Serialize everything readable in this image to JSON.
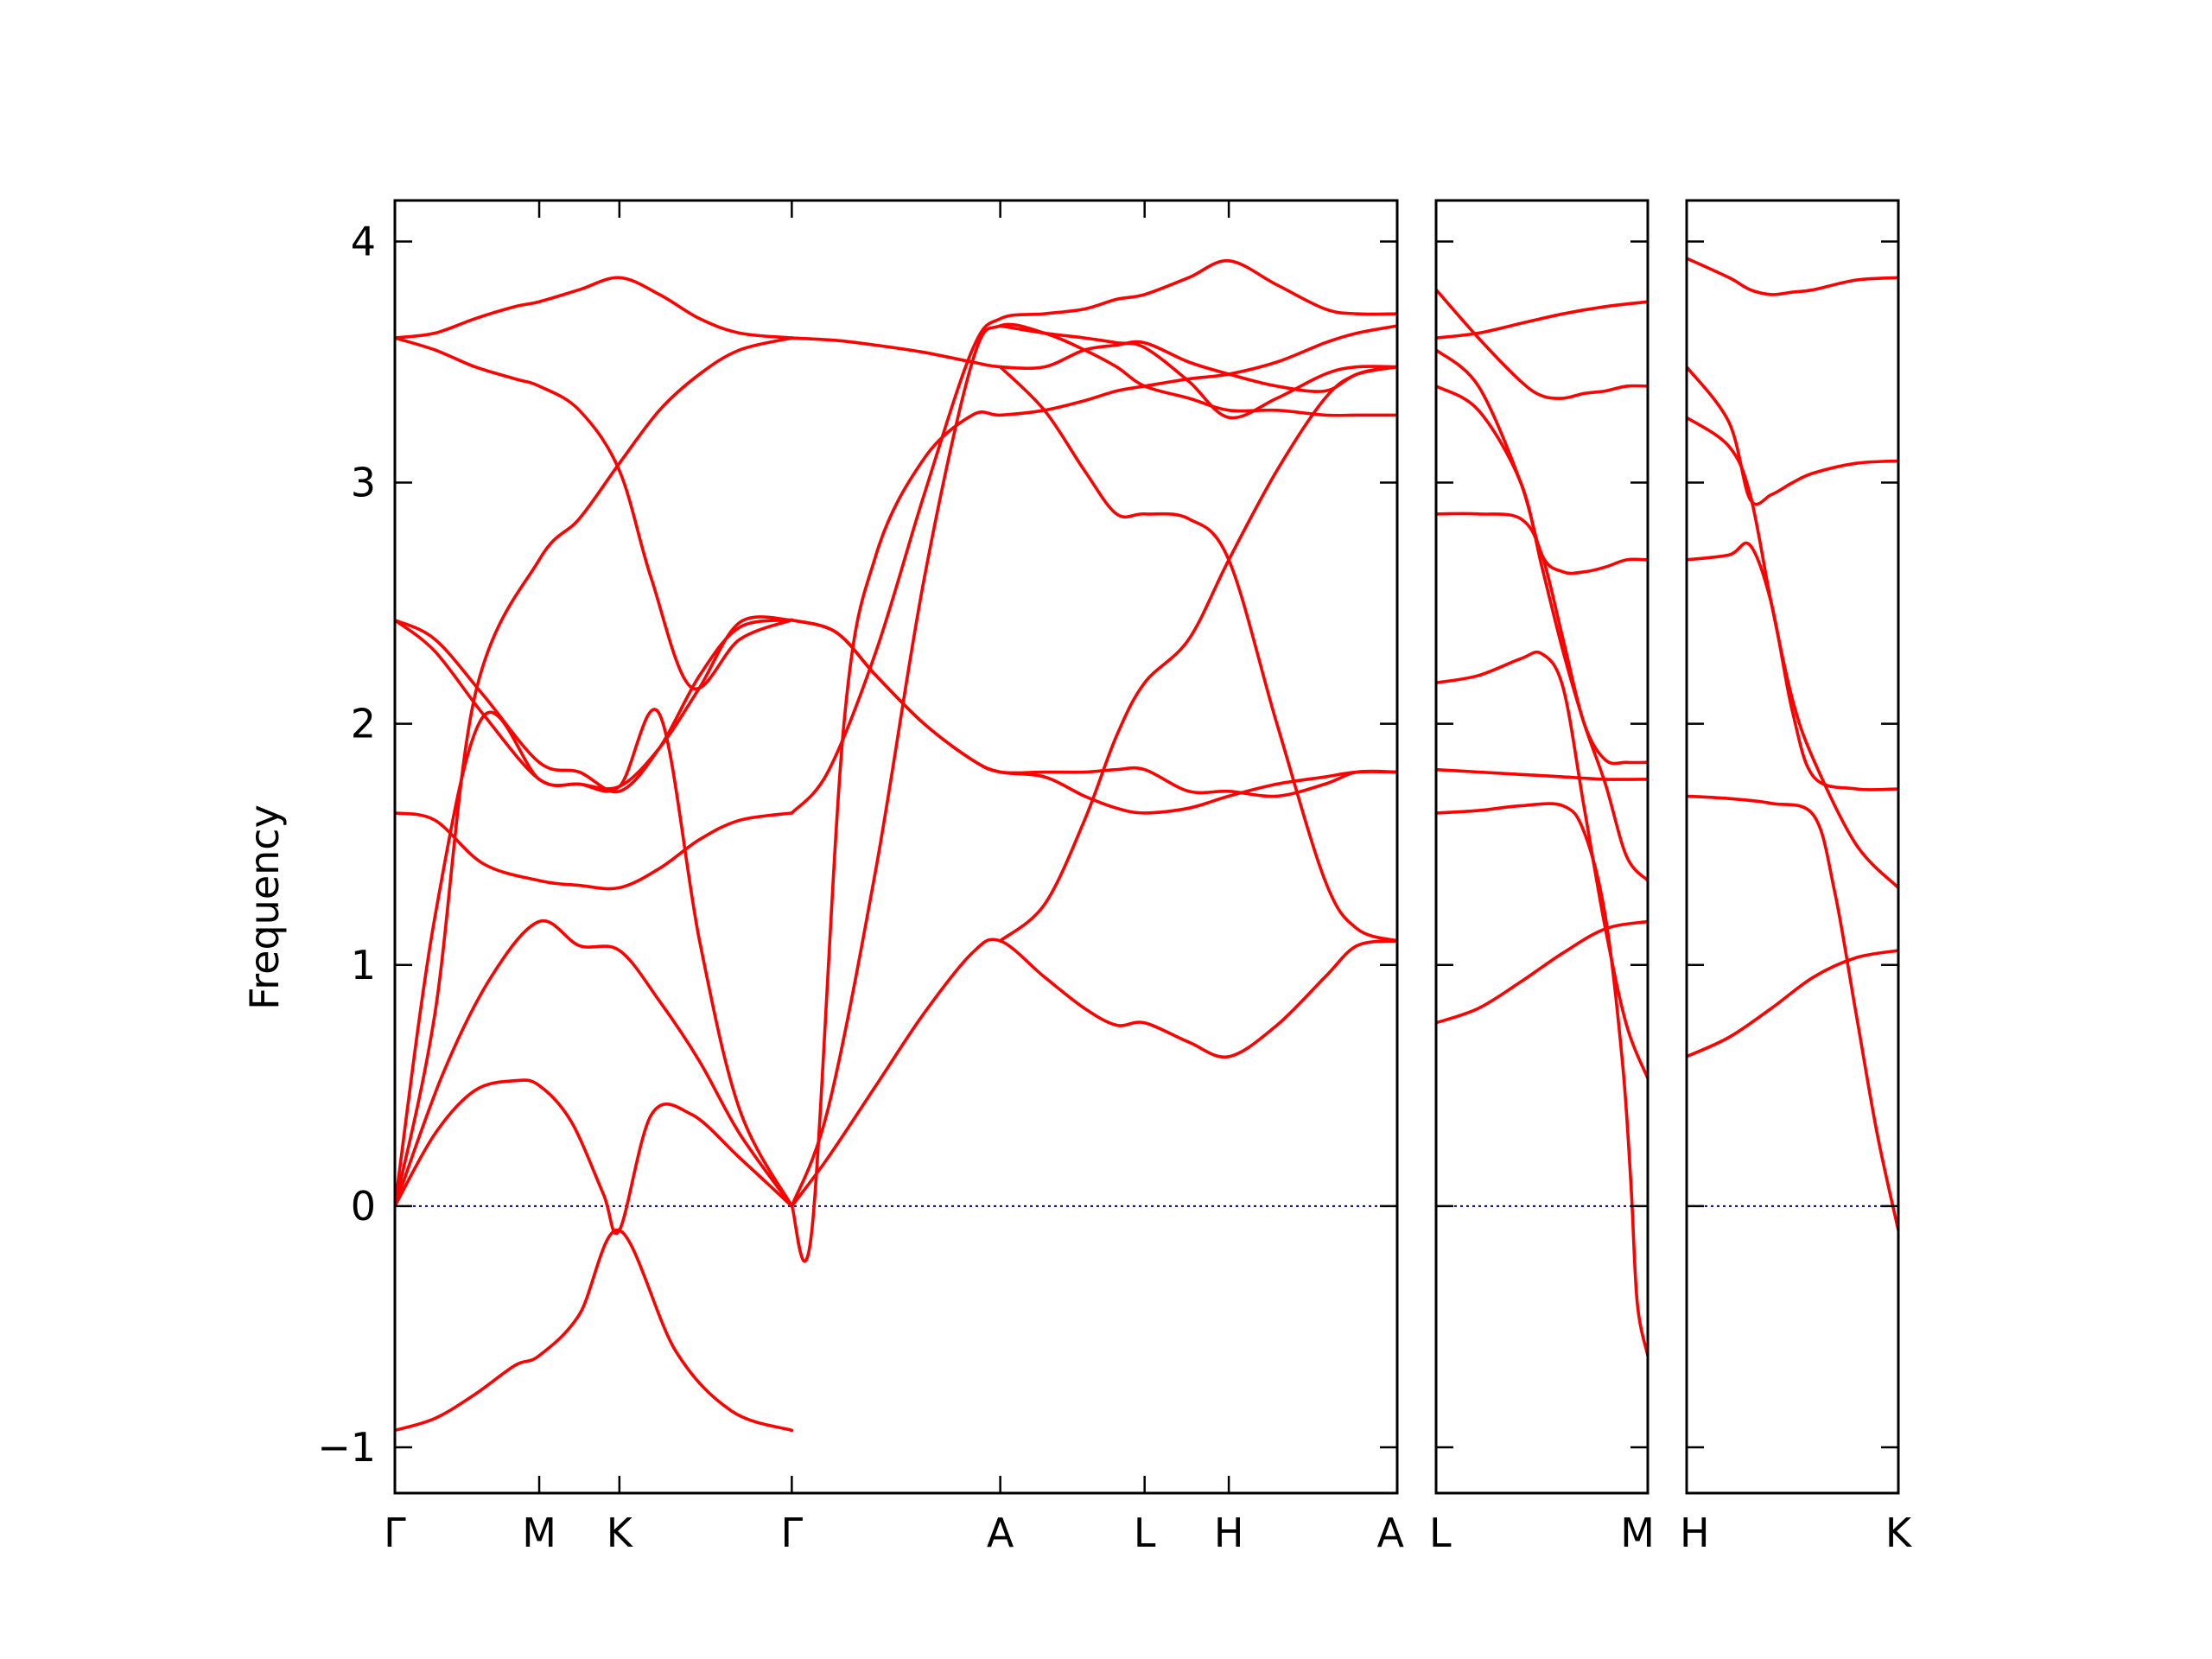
{
  "chart_data": {
    "type": "line",
    "ylabel": "Frequency",
    "ylim": [
      -1.19,
      4.17
    ],
    "yticks": [
      -1,
      0,
      1,
      2,
      3,
      4
    ],
    "ytick_labels": [
      "−1",
      "0",
      "1",
      "2",
      "3",
      "4"
    ],
    "grid": false,
    "legend": "none",
    "colors": {
      "bands": "#ff0000",
      "zero_line": "#000080"
    },
    "panels": [
      {
        "name": "panel-1",
        "x_range": [
          0,
          12.5
        ],
        "ticks": [
          {
            "x": 0,
            "label": "Γ"
          },
          {
            "x": 1.8,
            "label": "M"
          },
          {
            "x": 2.8,
            "label": "K"
          },
          {
            "x": 4.95,
            "label": "Γ"
          },
          {
            "x": 7.55,
            "label": "A"
          },
          {
            "x": 9.35,
            "label": "L"
          },
          {
            "x": 10.4,
            "label": "H"
          },
          {
            "x": 12.5,
            "label": "A"
          }
        ],
        "bands": [
          {
            "x": [
              0,
              0.5,
              1.0,
              1.5,
              1.8,
              2.3,
              2.8,
              3.5,
              4.2,
              4.95
            ],
            "y": [
              -0.93,
              -0.88,
              -0.78,
              -0.66,
              -0.62,
              -0.45,
              -0.1,
              -0.6,
              -0.85,
              -0.93
            ]
          },
          {
            "x": [
              0,
              0.5,
              1.0,
              1.5,
              1.8,
              2.2,
              2.6,
              2.8,
              3.2,
              3.7,
              4.3,
              4.95
            ],
            "y": [
              0,
              0.3,
              0.48,
              0.52,
              0.5,
              0.35,
              0.05,
              -0.1,
              0.38,
              0.38,
              0.2,
              0
            ]
          },
          {
            "x": [
              0,
              0.6,
              1.2,
              1.8,
              2.3,
              2.8,
              3.3,
              3.8,
              4.3,
              4.95
            ],
            "y": [
              0,
              0.55,
              0.95,
              1.18,
              1.08,
              1.06,
              0.85,
              0.6,
              0.3,
              0
            ]
          },
          {
            "x": [
              0,
              0.5,
              1.1,
              1.8,
              2.3,
              2.8,
              3.3,
              3.8,
              4.3,
              4.95
            ],
            "y": [
              0,
              1.2,
              2.03,
              1.77,
              1.75,
              1.74,
              2.04,
              1.1,
              0.4,
              0
            ]
          },
          {
            "x": [
              0,
              0.5,
              1.1,
              1.8,
              2.3,
              2.8,
              3.3,
              3.8,
              4.3,
              4.95
            ],
            "y": [
              1.63,
              1.6,
              1.42,
              1.35,
              1.33,
              1.32,
              1.4,
              1.52,
              1.6,
              1.63
            ]
          },
          {
            "x": [
              0,
              0.5,
              1.1,
              1.8,
              2.3,
              2.8,
              3.3,
              3.8,
              4.3,
              4.95
            ],
            "y": [
              2.43,
              2.35,
              2.12,
              1.84,
              1.8,
              1.72,
              1.9,
              2.2,
              2.4,
              2.43
            ]
          },
          {
            "x": [
              0,
              0.5,
              1.1,
              1.8,
              2.3,
              2.8,
              3.3,
              3.8,
              4.3,
              4.95
            ],
            "y": [
              2.43,
              2.3,
              2.04,
              1.77,
              1.75,
              1.74,
              1.9,
              2.15,
              2.42,
              2.43
            ]
          },
          {
            "x": [
              0,
              0.5,
              1.0,
              1.8,
              2.3,
              2.8,
              3.3,
              3.8,
              4.3,
              4.95
            ],
            "y": [
              0,
              0.8,
              2.12,
              2.68,
              2.85,
              3.08,
              3.3,
              3.45,
              3.55,
              3.6
            ]
          },
          {
            "x": [
              0,
              0.5,
              1.0,
              1.5,
              1.8,
              2.3,
              2.8,
              3.2,
              3.7,
              4.3,
              4.95
            ],
            "y": [
              3.6,
              3.55,
              3.48,
              3.43,
              3.4,
              3.3,
              3.05,
              2.6,
              2.15,
              2.35,
              2.43
            ]
          },
          {
            "x": [
              0,
              0.5,
              1.0,
              1.5,
              1.8,
              2.3,
              2.8,
              3.3,
              3.8,
              4.3,
              4.95
            ],
            "y": [
              3.6,
              3.62,
              3.68,
              3.73,
              3.75,
              3.8,
              3.85,
              3.78,
              3.68,
              3.62,
              3.6
            ]
          },
          {
            "x": [
              4.95,
              5.4,
              6.0,
              6.6,
              7.2,
              7.55,
              8.1,
              8.6,
              9.0,
              9.35,
              9.9,
              10.4,
              11.0,
              11.6,
              12.0,
              12.5
            ],
            "y": [
              0,
              0.2,
              0.5,
              0.8,
              1.05,
              1.1,
              0.95,
              0.82,
              0.75,
              0.76,
              0.68,
              0.62,
              0.75,
              0.95,
              1.08,
              1.1
            ]
          },
          {
            "x": [
              4.95,
              5.4,
              6.0,
              6.6,
              7.2,
              7.55,
              8.1,
              8.6,
              9.0,
              9.35,
              9.9,
              10.4,
              11.0,
              11.6,
              12.0,
              12.5
            ],
            "y": [
              0,
              0.4,
              1.4,
              2.6,
              3.5,
              3.65,
              3.62,
              3.55,
              3.48,
              3.4,
              3.35,
              3.3,
              3.3,
              3.28,
              3.28,
              3.28
            ]
          },
          {
            "x": [
              4.95,
              5.4,
              6.0,
              6.6,
              7.2,
              7.55,
              8.1,
              8.6,
              9.0,
              9.35,
              9.9,
              10.4,
              11.0,
              11.6,
              12.0,
              12.5
            ],
            "y": [
              1.63,
              1.8,
              2.3,
              2.95,
              3.55,
              3.68,
              3.7,
              3.72,
              3.76,
              3.78,
              3.85,
              3.92,
              3.82,
              3.72,
              3.7,
              3.7
            ]
          },
          {
            "x": [
              4.95,
              5.2,
              5.6,
              6.0,
              6.6,
              7.2,
              7.55,
              8.1,
              8.6,
              9.0,
              9.35,
              9.9,
              10.4,
              11.0,
              11.6,
              12.0,
              12.5
            ],
            "y": [
              0,
              -0.1,
              2.0,
              2.7,
              3.1,
              3.28,
              3.28,
              3.3,
              3.34,
              3.38,
              3.4,
              3.43,
              3.45,
              3.5,
              3.58,
              3.62,
              3.65
            ]
          },
          {
            "x": [
              4.95,
              5.5,
              6.0,
              6.6,
              7.2,
              7.55,
              8.1,
              8.6,
              9.0,
              9.35,
              9.9,
              10.4,
              11.0,
              11.6,
              12.0,
              12.5
            ],
            "y": [
              3.6,
              3.59,
              3.57,
              3.54,
              3.5,
              3.48,
              3.48,
              3.55,
              3.57,
              3.58,
              3.5,
              3.45,
              3.4,
              3.38,
              3.45,
              3.48
            ]
          },
          {
            "x": [
              4.95,
              5.5,
              6.0,
              6.6,
              7.2,
              7.55,
              8.1,
              8.6,
              9.0,
              9.35,
              9.9,
              10.4,
              11.0,
              11.6,
              12.0,
              12.5
            ],
            "y": [
              2.43,
              2.38,
              2.2,
              2.0,
              1.85,
              1.8,
              1.8,
              1.8,
              1.81,
              1.81,
              1.72,
              1.72,
              1.7,
              1.75,
              1.8,
              1.8
            ]
          },
          {
            "x": [
              4.95,
              5.5,
              6.0,
              6.6,
              7.2,
              7.55,
              8.1,
              8.6,
              9.0,
              9.35,
              9.9,
              10.4,
              11.0,
              11.6,
              12.0,
              12.5
            ],
            "y": [
              2.43,
              2.38,
              2.2,
              2.0,
              1.85,
              1.8,
              1.78,
              1.7,
              1.65,
              1.63,
              1.65,
              1.7,
              1.75,
              1.78,
              1.8,
              1.8
            ]
          },
          {
            "x": [
              7.55,
              8.1,
              8.6,
              9.0,
              9.35,
              9.9,
              10.4,
              11.0,
              11.6,
              12.0,
              12.5
            ],
            "y": [
              1.1,
              1.25,
              1.6,
              1.95,
              2.17,
              2.35,
              2.68,
              3.05,
              3.35,
              3.45,
              3.48
            ]
          },
          {
            "x": [
              7.55,
              8.1,
              8.6,
              9.0,
              9.35,
              9.9,
              10.4,
              11.0,
              11.6,
              12.0,
              12.5
            ],
            "y": [
              3.48,
              3.3,
              3.05,
              2.87,
              2.87,
              2.85,
              2.68,
              2.0,
              1.35,
              1.15,
              1.1
            ]
          },
          {
            "x": [
              7.55,
              8.1,
              8.6,
              9.0,
              9.35,
              9.9,
              10.4,
              11.0,
              11.6,
              12.0,
              12.5
            ],
            "y": [
              3.65,
              3.62,
              3.6,
              3.58,
              3.56,
              3.42,
              3.27,
              3.35,
              3.45,
              3.48,
              3.48
            ]
          }
        ]
      },
      {
        "name": "panel-2",
        "x_range": [
          0,
          1
        ],
        "ticks": [
          {
            "x": 0,
            "label": "L"
          },
          {
            "x": 1,
            "label": "M"
          }
        ],
        "bands": [
          {
            "x": [
              0,
              0.2,
              0.4,
              0.6,
              0.8,
              1.0
            ],
            "y": [
              0.76,
              0.82,
              0.93,
              1.05,
              1.15,
              1.18
            ]
          },
          {
            "x": [
              0,
              0.2,
              0.4,
              0.6,
              0.7,
              0.8,
              0.88,
              0.92,
              0.95,
              1.0
            ],
            "y": [
              1.63,
              1.64,
              1.66,
              1.66,
              1.55,
              1.2,
              0.6,
              0.1,
              -0.4,
              -0.62
            ]
          },
          {
            "x": [
              0,
              0.2,
              0.4,
              0.6,
              0.8,
              1.0
            ],
            "y": [
              1.81,
              1.8,
              1.79,
              1.78,
              1.77,
              1.77
            ]
          },
          {
            "x": [
              0,
              0.2,
              0.4,
              0.5,
              0.6,
              0.7,
              0.8,
              0.9,
              1.0
            ],
            "y": [
              2.17,
              2.2,
              2.27,
              2.29,
              2.15,
              1.65,
              1.15,
              0.75,
              0.53
            ]
          },
          {
            "x": [
              0,
              0.2,
              0.4,
              0.5,
              0.6,
              0.7,
              0.8,
              0.9,
              1.0
            ],
            "y": [
              2.87,
              2.87,
              2.85,
              2.7,
              2.35,
              2.0,
              1.85,
              1.84,
              1.84
            ]
          },
          {
            "x": [
              0,
              0.2,
              0.4,
              0.5,
              0.6,
              0.7,
              0.8,
              0.9,
              1.0
            ],
            "y": [
              3.4,
              3.3,
              3.0,
              2.65,
              2.3,
              2.0,
              1.75,
              1.45,
              1.35
            ]
          },
          {
            "x": [
              0,
              0.2,
              0.4,
              0.5,
              0.6,
              0.7,
              0.8,
              0.9,
              1.0
            ],
            "y": [
              3.55,
              3.4,
              3.0,
              2.7,
              2.63,
              2.63,
              2.65,
              2.68,
              2.68
            ]
          },
          {
            "x": [
              0,
              0.2,
              0.4,
              0.5,
              0.6,
              0.7,
              0.8,
              0.9,
              1.0
            ],
            "y": [
              3.8,
              3.6,
              3.42,
              3.36,
              3.35,
              3.37,
              3.38,
              3.4,
              3.4
            ]
          },
          {
            "x": [
              0,
              0.2,
              0.4,
              0.6,
              0.8,
              1.0
            ],
            "y": [
              3.6,
              3.62,
              3.66,
              3.7,
              3.73,
              3.75
            ]
          }
        ]
      },
      {
        "name": "panel-3",
        "x_range": [
          0,
          1
        ],
        "ticks": [
          {
            "x": 0,
            "label": "H"
          },
          {
            "x": 1,
            "label": "K"
          }
        ],
        "bands": [
          {
            "x": [
              0,
              0.2,
              0.4,
              0.6,
              0.8,
              1.0
            ],
            "y": [
              0.62,
              0.7,
              0.82,
              0.95,
              1.03,
              1.06
            ]
          },
          {
            "x": [
              0,
              0.2,
              0.4,
              0.6,
              0.7,
              0.8,
              0.9,
              1.0
            ],
            "y": [
              1.7,
              1.69,
              1.67,
              1.62,
              1.3,
              0.8,
              0.3,
              -0.1
            ]
          },
          {
            "x": [
              0,
              0.2,
              0.3,
              0.4,
              0.5,
              0.6,
              0.8,
              1.0
            ],
            "y": [
              2.68,
              2.7,
              2.74,
              2.5,
              2.05,
              1.78,
              1.73,
              1.73
            ]
          },
          {
            "x": [
              0,
              0.2,
              0.3,
              0.4,
              0.5,
              0.6,
              0.8,
              1.0
            ],
            "y": [
              3.27,
              3.15,
              2.95,
              2.5,
              2.1,
              1.85,
              1.5,
              1.32
            ]
          },
          {
            "x": [
              0,
              0.2,
              0.3,
              0.4,
              0.5,
              0.6,
              0.8,
              1.0
            ],
            "y": [
              3.48,
              3.25,
              2.93,
              2.95,
              3.0,
              3.04,
              3.08,
              3.09
            ]
          },
          {
            "x": [
              0,
              0.2,
              0.3,
              0.4,
              0.5,
              0.6,
              0.8,
              1.0
            ],
            "y": [
              3.93,
              3.85,
              3.8,
              3.78,
              3.79,
              3.8,
              3.84,
              3.85
            ]
          }
        ]
      }
    ]
  }
}
